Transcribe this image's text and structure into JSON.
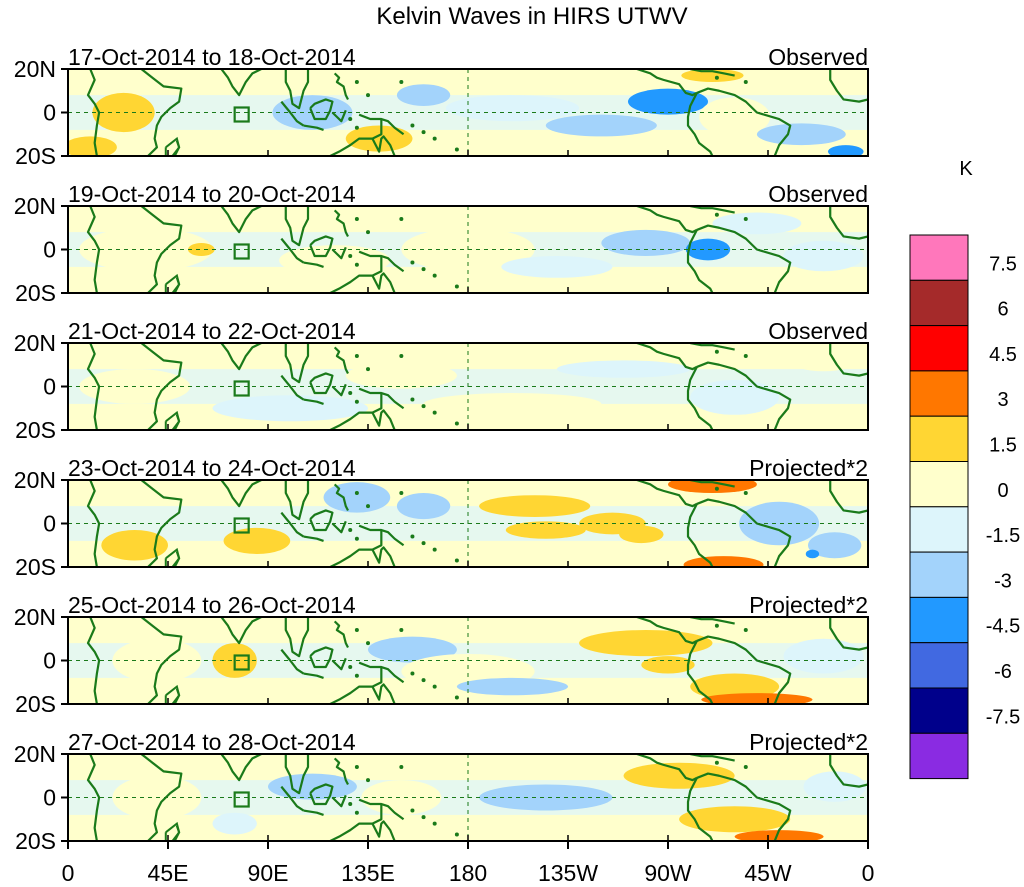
{
  "chart_data": {
    "type": "heatmap",
    "title": "Kelvin Waves in HIRS UTWV",
    "x_ticks": [
      "0",
      "45E",
      "90E",
      "135E",
      "180",
      "135W",
      "90W",
      "45W",
      "0"
    ],
    "x_range_deg_east": [
      0,
      360
    ],
    "y_ticks": [
      "20N",
      "0",
      "20S"
    ],
    "y_range_deg": [
      -20,
      20
    ],
    "panels": [
      {
        "date_range": "17-Oct-2014 to 18-Oct-2014",
        "kind": "Observed"
      },
      {
        "date_range": "19-Oct-2014 to 20-Oct-2014",
        "kind": "Observed"
      },
      {
        "date_range": "21-Oct-2014 to 22-Oct-2014",
        "kind": "Observed"
      },
      {
        "date_range": "23-Oct-2014 to 24-Oct-2014",
        "kind": "Projected*2"
      },
      {
        "date_range": "25-Oct-2014 to 26-Oct-2014",
        "kind": "Projected*2"
      },
      {
        "date_range": "27-Oct-2014 to 28-Oct-2014",
        "kind": "Projected*2"
      }
    ],
    "colorbar": {
      "unit": "K",
      "labels": [
        "7.5",
        "6",
        "4.5",
        "3",
        "1.5",
        "0",
        "-1.5",
        "-3",
        "-4.5",
        "-6",
        "-7.5"
      ],
      "colors": [
        "#ff77bb",
        "#a52a2a",
        "#ff0000",
        "#ff7700",
        "#ffd633",
        "#ffffcc",
        "#ddf5fb",
        "#a3d3fb",
        "#2299ff",
        "#4169e1",
        "#00008b",
        "#8a2be2"
      ]
    }
  },
  "colors": {
    "coast": "#1a7a1a",
    "grid": "#1a7a1a",
    "frame": "#000000"
  }
}
